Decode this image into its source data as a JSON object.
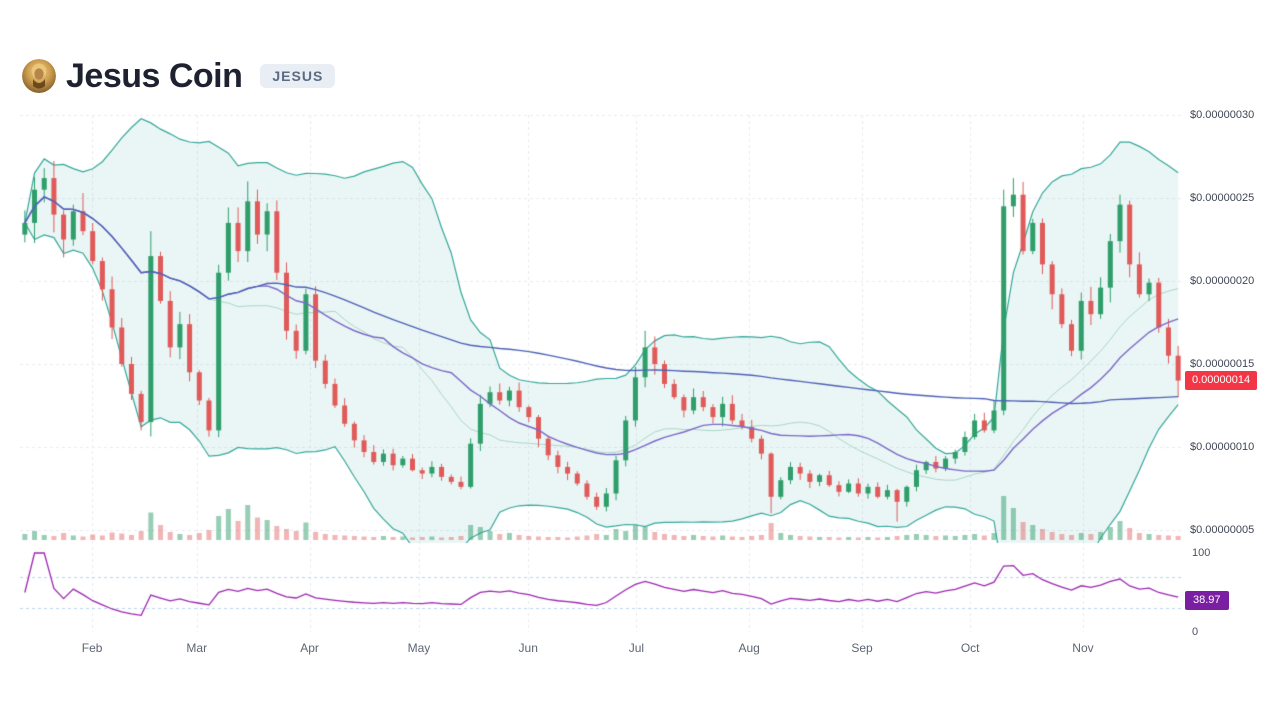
{
  "header": {
    "title": "Jesus Coin",
    "symbol": "JESUS"
  },
  "chart_data": {
    "type": "candlestick",
    "title": "Jesus Coin (JESUS) price chart with Bollinger Bands, moving averages, volume and RSI",
    "y_scale": 1e-08,
    "ylim": [
      0.5,
      3.0
    ],
    "y_ticks": [
      {
        "label": "$0.00000030",
        "value": 3.0
      },
      {
        "label": "$0.00000025",
        "value": 2.5
      },
      {
        "label": "$0.00000020",
        "value": 2.0
      },
      {
        "label": "$0.00000015",
        "value": 1.5
      },
      {
        "label": "$0.00000010",
        "value": 1.0
      },
      {
        "label": "$0.00000005",
        "value": 0.5
      }
    ],
    "x_ticks": [
      {
        "label": "Feb",
        "t": 0.062
      },
      {
        "label": "Mar",
        "t": 0.152
      },
      {
        "label": "Apr",
        "t": 0.249
      },
      {
        "label": "May",
        "t": 0.343
      },
      {
        "label": "Jun",
        "t": 0.437
      },
      {
        "label": "Jul",
        "t": 0.53
      },
      {
        "label": "Aug",
        "t": 0.627
      },
      {
        "label": "Sep",
        "t": 0.724
      },
      {
        "label": "Oct",
        "t": 0.817
      },
      {
        "label": "Nov",
        "t": 0.914
      }
    ],
    "current_price": {
      "label": "0.00000014",
      "value": 1.4,
      "color": "#f23645"
    },
    "series": {
      "closes": [
        2.35,
        2.55,
        2.62,
        2.4,
        2.25,
        2.42,
        2.3,
        2.12,
        1.95,
        1.72,
        1.5,
        1.32,
        1.15,
        2.15,
        1.88,
        1.6,
        1.74,
        1.45,
        1.28,
        1.1,
        2.05,
        2.35,
        2.18,
        2.48,
        2.28,
        2.42,
        2.05,
        1.7,
        1.58,
        1.92,
        1.52,
        1.38,
        1.25,
        1.14,
        1.04,
        0.97,
        0.91,
        0.96,
        0.89,
        0.93,
        0.86,
        0.84,
        0.88,
        0.82,
        0.79,
        0.76,
        1.02,
        1.26,
        1.33,
        1.28,
        1.34,
        1.24,
        1.18,
        1.05,
        0.95,
        0.88,
        0.84,
        0.78,
        0.7,
        0.64,
        0.72,
        0.92,
        1.16,
        1.42,
        1.6,
        1.5,
        1.38,
        1.3,
        1.22,
        1.3,
        1.24,
        1.18,
        1.26,
        1.16,
        1.12,
        1.05,
        0.96,
        0.7,
        0.8,
        0.88,
        0.84,
        0.79,
        0.83,
        0.77,
        0.73,
        0.78,
        0.72,
        0.76,
        0.7,
        0.74,
        0.67,
        0.76,
        0.86,
        0.91,
        0.87,
        0.93,
        0.97,
        1.06,
        1.16,
        1.1,
        1.22,
        2.45,
        2.52,
        2.18,
        2.35,
        2.1,
        1.92,
        1.74,
        1.58,
        1.88,
        1.8,
        1.96,
        2.24,
        2.46,
        2.1,
        1.92,
        1.99,
        1.72,
        1.55,
        1.4
      ],
      "volumes": [
        12,
        18,
        10,
        8,
        14,
        9,
        7,
        11,
        9,
        15,
        13,
        10,
        18,
        55,
        30,
        16,
        12,
        10,
        14,
        20,
        48,
        62,
        38,
        70,
        45,
        40,
        28,
        22,
        18,
        35,
        16,
        12,
        10,
        9,
        8,
        7,
        6,
        8,
        6,
        7,
        5,
        6,
        7,
        5,
        6,
        8,
        30,
        26,
        18,
        12,
        14,
        10,
        8,
        7,
        6,
        6,
        5,
        7,
        9,
        12,
        10,
        22,
        18,
        30,
        26,
        16,
        12,
        10,
        8,
        10,
        8,
        7,
        9,
        7,
        6,
        8,
        10,
        34,
        14,
        10,
        8,
        7,
        6,
        6,
        5,
        6,
        5,
        6,
        5,
        6,
        8,
        10,
        12,
        10,
        8,
        9,
        8,
        10,
        12,
        9,
        14,
        88,
        64,
        36,
        30,
        22,
        16,
        12,
        10,
        14,
        12,
        16,
        26,
        38,
        24,
        14,
        12,
        10,
        9,
        8
      ]
    },
    "wicks": [
      {
        "i": 2,
        "high": 2.68
      },
      {
        "i": 13,
        "high": 2.3
      },
      {
        "i": 23,
        "high": 2.6
      },
      {
        "i": 64,
        "high": 1.7
      },
      {
        "i": 77,
        "low": 0.6
      },
      {
        "i": 90,
        "low": 0.55
      },
      {
        "i": 101,
        "high": 2.55
      },
      {
        "i": 102,
        "high": 2.62
      },
      {
        "i": 113,
        "high": 2.52
      },
      {
        "i": 119,
        "low": 1.3
      }
    ],
    "indicators": {
      "bollinger": {
        "period": 20,
        "mult": 2,
        "fill": "rgba(53,167,155,0.10)",
        "line": "#35a79b"
      },
      "sma_mid": {
        "period": 20,
        "color": "#a9d5c5"
      },
      "sma_fast": {
        "period": 25,
        "color": "#7b68c9"
      },
      "sma_slow": {
        "period": 100,
        "color": "#4e61b6"
      },
      "rsi": {
        "period": 14,
        "color": "#9c27b0",
        "badge_color": "#7b1fa2",
        "current_label": "38.97",
        "overbought": 70,
        "oversold": 30,
        "axis_labels": [
          {
            "label": "100",
            "value": 100
          },
          {
            "label": "0",
            "value": 0
          }
        ]
      }
    },
    "colors": {
      "up": "#2f9e6b",
      "down": "#e05a5a",
      "vol_up": "rgba(47,158,107,0.50)",
      "vol_down": "rgba(224,90,90,0.45)",
      "grid": "#e8ebf1",
      "rsi_band": "#b9d7f2"
    },
    "legend_position": "none",
    "grid": true
  }
}
